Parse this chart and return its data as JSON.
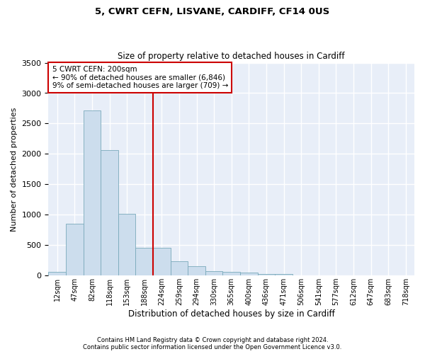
{
  "title1": "5, CWRT CEFN, LISVANE, CARDIFF, CF14 0US",
  "title2": "Size of property relative to detached houses in Cardiff",
  "xlabel": "Distribution of detached houses by size in Cardiff",
  "ylabel": "Number of detached properties",
  "bar_color": "#ccdded",
  "bar_edge_color": "#7aaabb",
  "background_color": "#e8eef8",
  "grid_color": "#ffffff",
  "categories": [
    "12sqm",
    "47sqm",
    "82sqm",
    "118sqm",
    "153sqm",
    "188sqm",
    "224sqm",
    "259sqm",
    "294sqm",
    "330sqm",
    "365sqm",
    "400sqm",
    "436sqm",
    "471sqm",
    "506sqm",
    "541sqm",
    "577sqm",
    "612sqm",
    "647sqm",
    "683sqm",
    "718sqm"
  ],
  "values": [
    60,
    850,
    2720,
    2060,
    1010,
    460,
    460,
    230,
    150,
    70,
    60,
    50,
    30,
    20,
    0,
    0,
    0,
    0,
    0,
    0,
    0
  ],
  "ylim": [
    0,
    3500
  ],
  "yticks": [
    0,
    500,
    1000,
    1500,
    2000,
    2500,
    3000,
    3500
  ],
  "vline_x": 6.0,
  "vline_color": "#cc0000",
  "annotation_text": "5 CWRT CEFN: 200sqm\n← 90% of detached houses are smaller (6,846)\n9% of semi-detached houses are larger (709) →",
  "annotation_box_color": "#cc0000",
  "footer1": "Contains HM Land Registry data © Crown copyright and database right 2024.",
  "footer2": "Contains public sector information licensed under the Open Government Licence v3.0."
}
